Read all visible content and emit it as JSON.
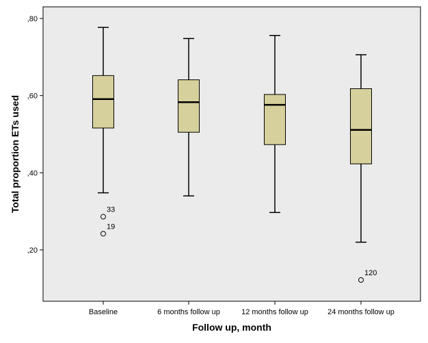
{
  "chart_data": {
    "type": "boxplot",
    "xlabel": "Follow up, month",
    "ylabel": "Total proportion ETs used",
    "ylim": [
      0.06,
      0.83
    ],
    "y_ticks": [
      0.2,
      0.4,
      0.6,
      0.8
    ],
    "y_tick_labels": [
      ",20",
      ",40",
      ",60",
      ",80"
    ],
    "grid": false,
    "colors": {
      "plot_background": "#ebebeb",
      "box_fill": "#d6d09c",
      "stroke": "#000000"
    },
    "categories": [
      "Baseline",
      "6 months follow up",
      "12 months follow up",
      "24 months follow up"
    ],
    "boxes": [
      {
        "category": "Baseline",
        "whisker_low": 0.348,
        "q1": 0.516,
        "median": 0.591,
        "q3": 0.652,
        "whisker_high": 0.777,
        "outliers": [
          {
            "value": 0.286,
            "label": "33"
          },
          {
            "value": 0.242,
            "label": "19"
          }
        ]
      },
      {
        "category": "6 months follow up",
        "whisker_low": 0.34,
        "q1": 0.505,
        "median": 0.583,
        "q3": 0.641,
        "whisker_high": 0.748,
        "outliers": []
      },
      {
        "category": "12 months follow up",
        "whisker_low": 0.297,
        "q1": 0.473,
        "median": 0.576,
        "q3": 0.603,
        "whisker_high": 0.756,
        "outliers": []
      },
      {
        "category": "24 months follow up",
        "whisker_low": 0.22,
        "q1": 0.423,
        "median": 0.511,
        "q3": 0.618,
        "whisker_high": 0.706,
        "outliers": [
          {
            "value": 0.122,
            "label": "120"
          }
        ]
      }
    ]
  }
}
